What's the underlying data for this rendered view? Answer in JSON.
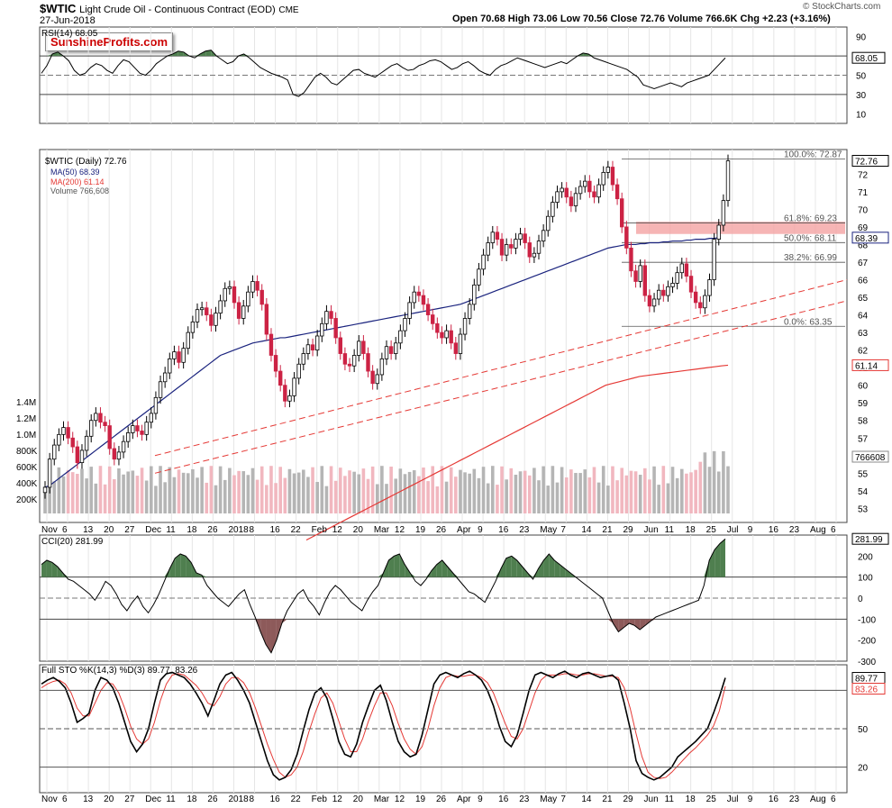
{
  "header": {
    "title": "$WTIC",
    "subtitle": "Light Crude Oil - Continuous Contract (EOD)",
    "exchange": "CME",
    "date": "27-Jun-2018",
    "ohlc": "Open 70.68  High 73.06  Low 70.56  Close 72.76  Volume 766.6K  Chg +2.23 (+3.16%)",
    "quote_icon": "up-triangle-icon",
    "copyright": "© StockCharts.com",
    "brand_logo": "SunshineProfits.com"
  },
  "colors": {
    "up": "#000000",
    "down": "#cc2244",
    "ma50": "#1a237e",
    "ma200": "#e53935",
    "rsi_fill": "#4f7f4f",
    "cci_neg": "#8d5a5a",
    "fib_zone": "#f4a3a3",
    "vol_up": "#b5b5b5",
    "vol_down": "#f1b7bf"
  },
  "chart_data": [
    {
      "type": "line",
      "title": "RSI(14) 68.05",
      "label_shown": "RSI(14) 68.05",
      "ticks": [
        "90",
        "70",
        "50",
        "30",
        "10"
      ],
      "ylim": [
        0,
        100
      ],
      "last_value": "68.05",
      "values": [
        52,
        60,
        72,
        74,
        70,
        65,
        55,
        50,
        52,
        58,
        62,
        60,
        55,
        52,
        60,
        66,
        64,
        58,
        52,
        50,
        55,
        62,
        66,
        70,
        72,
        75,
        74,
        70,
        68,
        72,
        75,
        76,
        70,
        66,
        62,
        64,
        70,
        72,
        68,
        63,
        58,
        55,
        52,
        50,
        48,
        45,
        30,
        28,
        32,
        40,
        48,
        52,
        48,
        42,
        40,
        45,
        50,
        55,
        56,
        52,
        50,
        48,
        52,
        56,
        60,
        62,
        58,
        55,
        56,
        60,
        62,
        65,
        66,
        64,
        60,
        56,
        58,
        62,
        64,
        60,
        55,
        52,
        50,
        56,
        60,
        62,
        65,
        68,
        66,
        64,
        62,
        60,
        58,
        60,
        62,
        64,
        62,
        66,
        70,
        73,
        72,
        68,
        66,
        64,
        62,
        60,
        58,
        56,
        52,
        48,
        40,
        38,
        36,
        38,
        40,
        42,
        40,
        38,
        42,
        44,
        46,
        48,
        50,
        56,
        62,
        68
      ]
    },
    {
      "type": "candlestick",
      "title": "$WTIC (Daily) 72.76",
      "legend": [
        "$WTIC (Daily) 72.76",
        "MA(50) 68.39",
        "MA(200) 61.14",
        "Volume 766,608"
      ],
      "y_ticks": [
        "72",
        "71",
        "70",
        "69",
        "68",
        "67",
        "66",
        "65",
        "64",
        "63",
        "62",
        "61",
        "60",
        "59",
        "58",
        "57",
        "56",
        "55",
        "54",
        "53"
      ],
      "ylim": [
        52.2,
        73.4
      ],
      "last_close": "72.76",
      "ma50_last": "68.39",
      "ma200_last": "61.14",
      "volume_last": "766608",
      "volume_ticks": [
        "1.4M",
        "1.2M",
        "1.0M",
        "800K",
        "600K",
        "400K",
        "200K"
      ],
      "fib_levels": [
        {
          "label": "100.0%: 72.87",
          "value": 72.87
        },
        {
          "label": "61.8%: 69.23",
          "value": 69.23
        },
        {
          "label": "50.0%: 68.11",
          "value": 68.11
        },
        {
          "label": "38.2%: 66.99",
          "value": 66.99
        },
        {
          "label": "0.0%: 63.35",
          "value": 63.35
        }
      ],
      "fib_zone": [
        68.6,
        69.3
      ],
      "closes": [
        54.2,
        55.8,
        56.6,
        57.2,
        57.6,
        57.0,
        56.5,
        55.6,
        56.3,
        57.1,
        58.0,
        58.4,
        57.9,
        57.7,
        56.4,
        55.8,
        56.2,
        56.8,
        57.3,
        57.7,
        57.4,
        57.2,
        57.9,
        58.4,
        59.3,
        60.2,
        60.7,
        61.5,
        61.9,
        61.3,
        62.1,
        63.0,
        63.6,
        64.3,
        64.4,
        64.0,
        63.4,
        64.1,
        64.8,
        65.5,
        65.6,
        64.7,
        63.8,
        64.5,
        65.3,
        65.9,
        65.4,
        64.6,
        62.9,
        61.7,
        60.8,
        60.0,
        59.1,
        59.4,
        60.4,
        61.2,
        61.8,
        62.3,
        62.0,
        62.8,
        63.5,
        64.2,
        63.8,
        62.7,
        61.8,
        61.2,
        61.1,
        61.7,
        62.5,
        61.8,
        60.8,
        60.1,
        60.6,
        61.5,
        62.2,
        61.8,
        62.4,
        63.1,
        63.8,
        64.7,
        65.3,
        65.1,
        64.6,
        64.0,
        63.5,
        63.0,
        62.7,
        63.1,
        62.4,
        61.8,
        62.9,
        63.8,
        64.6,
        65.7,
        66.6,
        67.4,
        68.1,
        68.7,
        68.3,
        67.4,
        68.0,
        67.8,
        68.3,
        68.6,
        68.1,
        67.3,
        67.5,
        68.2,
        68.8,
        69.6,
        70.4,
        71.0,
        71.2,
        70.7,
        70.2,
        70.9,
        71.3,
        71.6,
        71.0,
        70.7,
        71.4,
        72.1,
        72.4,
        71.4,
        70.6,
        69.0,
        67.8,
        66.5,
        65.9,
        66.8,
        65.1,
        64.5,
        64.9,
        65.4,
        65.1,
        65.6,
        65.8,
        66.4,
        66.9,
        66.2,
        65.3,
        64.7,
        64.4,
        65.1,
        66.0,
        68.3,
        69.1,
        70.5,
        72.76
      ],
      "ma50": [
        54.2,
        54.3,
        54.5,
        54.7,
        54.9,
        55.1,
        55.3,
        55.5,
        55.7,
        55.9,
        56.1,
        56.3,
        56.5,
        56.7,
        56.9,
        57.1,
        57.3,
        57.5,
        57.7,
        57.9,
        58.1,
        58.3,
        58.5,
        58.7,
        58.9,
        59.1,
        59.3,
        59.5,
        59.7,
        59.9,
        60.1,
        60.3,
        60.5,
        60.7,
        60.9,
        61.1,
        61.3,
        61.5,
        61.7,
        61.8,
        61.9,
        62.0,
        62.1,
        62.2,
        62.3,
        62.4,
        62.45,
        62.5,
        62.55,
        62.6,
        62.65,
        62.7,
        62.7,
        62.75,
        62.8,
        62.85,
        62.9,
        62.95,
        63.0,
        63.05,
        63.1,
        63.15,
        63.2,
        63.25,
        63.3,
        63.35,
        63.4,
        63.45,
        63.5,
        63.55,
        63.6,
        63.65,
        63.7,
        63.75,
        63.8,
        63.85,
        63.9,
        63.95,
        64.0,
        64.05,
        64.1,
        64.15,
        64.2,
        64.25,
        64.3,
        64.35,
        64.4,
        64.45,
        64.5,
        64.55,
        64.6,
        64.7,
        64.8,
        64.9,
        65.0,
        65.1,
        65.2,
        65.3,
        65.4,
        65.5,
        65.6,
        65.7,
        65.8,
        65.9,
        66.0,
        66.1,
        66.2,
        66.3,
        66.4,
        66.5,
        66.6,
        66.7,
        66.8,
        66.9,
        67.0,
        67.1,
        67.2,
        67.3,
        67.4,
        67.5,
        67.6,
        67.7,
        67.8,
        67.85,
        67.9,
        67.95,
        68.0,
        68.0,
        68.0,
        68.05,
        68.05,
        68.1,
        68.1,
        68.1,
        68.15,
        68.15,
        68.2,
        68.2,
        68.2,
        68.25,
        68.25,
        68.3,
        68.3,
        68.3,
        68.35,
        68.35,
        68.39
      ],
      "ma200": [
        51.2,
        51.4,
        51.6,
        51.8,
        52.0,
        52.2,
        52.4,
        52.6,
        52.8,
        53.0,
        53.2,
        53.4,
        53.6,
        53.8,
        54.0,
        54.2,
        54.4,
        54.6,
        54.8,
        55.0,
        55.2,
        55.4,
        55.6,
        55.8,
        56.0,
        56.2,
        56.4,
        56.6,
        56.8,
        57.0,
        57.2,
        57.4,
        57.6,
        57.8,
        58.0,
        58.2,
        58.4,
        58.6,
        58.8,
        59.0,
        59.2,
        59.4,
        59.6,
        59.8,
        60.0,
        60.1,
        60.2,
        60.3,
        60.4,
        60.5,
        60.55,
        60.6,
        60.65,
        60.7,
        60.75,
        60.8,
        60.85,
        60.9,
        60.95,
        61.0,
        61.05,
        61.1,
        61.14
      ]
    },
    {
      "type": "line",
      "title": "CCI(20) 281.99",
      "label_shown": "CCI(20) 281.99",
      "ticks": [
        "200",
        "100",
        "0",
        "-100",
        "-200",
        "-300"
      ],
      "ylim": [
        -300,
        300
      ],
      "last_value": "281.99",
      "values": [
        160,
        180,
        170,
        150,
        120,
        90,
        80,
        60,
        40,
        20,
        -10,
        30,
        80,
        60,
        20,
        -30,
        -60,
        -20,
        10,
        -40,
        -70,
        -30,
        20,
        80,
        140,
        190,
        210,
        200,
        170,
        120,
        110,
        60,
        30,
        0,
        -20,
        -40,
        -10,
        20,
        40,
        -30,
        -90,
        -160,
        -220,
        -260,
        -200,
        -120,
        -60,
        -20,
        20,
        40,
        -10,
        -40,
        -80,
        -20,
        30,
        60,
        40,
        10,
        -20,
        -40,
        -60,
        -10,
        30,
        60,
        120,
        180,
        200,
        210,
        160,
        120,
        80,
        60,
        90,
        130,
        160,
        180,
        150,
        120,
        90,
        60,
        30,
        20,
        0,
        -20,
        30,
        80,
        140,
        190,
        200,
        180,
        150,
        120,
        90,
        140,
        180,
        210,
        180,
        160,
        140,
        120,
        100,
        80,
        60,
        40,
        20,
        0,
        -60,
        -120,
        -160,
        -140,
        -120,
        -130,
        -150,
        -130,
        -110,
        -90,
        -80,
        -70,
        -60,
        -50,
        -40,
        -30,
        -20,
        -10,
        60,
        180,
        230,
        260,
        281.99
      ]
    },
    {
      "type": "line",
      "title": "Full STO %K(14,3) %D(3) 89.77, 83.26",
      "label_shown": "Full STO %K(14,3) %D(3) 89.77, 83.26",
      "ticks": [
        "80",
        "50",
        "20"
      ],
      "ylim": [
        0,
        100
      ],
      "k_last": "89.77",
      "d_last": "83.26",
      "k": [
        85,
        88,
        90,
        87,
        82,
        70,
        55,
        58,
        62,
        80,
        90,
        88,
        82,
        70,
        55,
        40,
        32,
        38,
        50,
        70,
        88,
        93,
        94,
        92,
        90,
        85,
        78,
        70,
        60,
        72,
        85,
        92,
        94,
        88,
        80,
        70,
        55,
        40,
        25,
        14,
        10,
        12,
        18,
        30,
        48,
        65,
        78,
        82,
        74,
        58,
        40,
        30,
        28,
        38,
        55,
        68,
        80,
        84,
        72,
        55,
        40,
        32,
        28,
        30,
        45,
        65,
        85,
        92,
        94,
        92,
        90,
        93,
        95,
        92,
        88,
        80,
        68,
        52,
        40,
        36,
        45,
        62,
        80,
        92,
        94,
        92,
        90,
        93,
        95,
        92,
        90,
        93,
        94,
        92,
        90,
        91,
        92,
        88,
        70,
        50,
        25,
        15,
        12,
        10,
        12,
        16,
        20,
        28,
        32,
        36,
        40,
        45,
        50,
        62,
        75,
        89.77
      ],
      "d": [
        82,
        85,
        87,
        88,
        85,
        78,
        66,
        60,
        60,
        70,
        80,
        86,
        85,
        78,
        66,
        52,
        42,
        38,
        42,
        55,
        72,
        85,
        92,
        93,
        92,
        88,
        84,
        78,
        70,
        68,
        75,
        85,
        90,
        90,
        86,
        78,
        66,
        52,
        38,
        26,
        16,
        12,
        14,
        20,
        32,
        48,
        62,
        74,
        78,
        70,
        56,
        42,
        32,
        32,
        42,
        56,
        68,
        78,
        78,
        68,
        54,
        42,
        34,
        30,
        36,
        50,
        68,
        82,
        90,
        92,
        91,
        91,
        92,
        92,
        90,
        86,
        78,
        66,
        54,
        44,
        42,
        50,
        64,
        78,
        88,
        92,
        92,
        92,
        93,
        93,
        92,
        92,
        93,
        93,
        92,
        91,
        91,
        90,
        82,
        66,
        46,
        28,
        16,
        12,
        11,
        12,
        16,
        21,
        26,
        31,
        35,
        40,
        45,
        52,
        64,
        83.26
      ]
    }
  ],
  "x_axis": {
    "labels": [
      "Nov",
      "6",
      "13",
      "20",
      "27",
      "Dec",
      "11",
      "18",
      "26",
      "2018",
      "8",
      "16",
      "22",
      "Feb",
      "12",
      "20",
      "Mar",
      "12",
      "19",
      "26",
      "Apr",
      "9",
      "16",
      "23",
      "May",
      "7",
      "14",
      "21",
      "29",
      "Jun",
      "11",
      "18",
      "25",
      "Jul",
      "9",
      "16",
      "23",
      "Aug",
      "6"
    ]
  }
}
